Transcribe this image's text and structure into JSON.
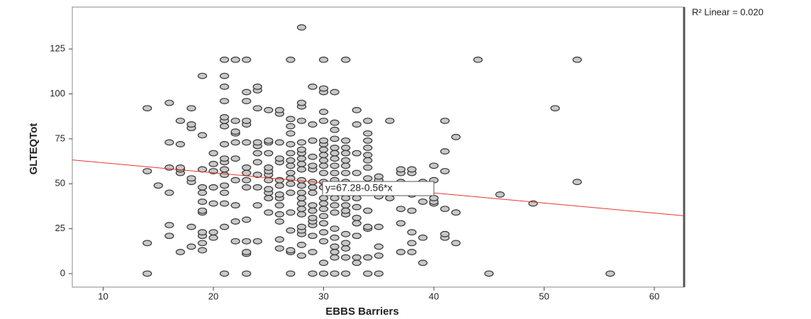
{
  "chart_data": {
    "type": "scatter",
    "x_label": "EBBS Barriers",
    "y_label": "GLTEQTot",
    "r2_label": "R² Linear = 0.020",
    "xlim": [
      7.2,
      62.7
    ],
    "ylim": [
      -7.5,
      148.3
    ],
    "xticks": [
      10,
      20,
      30,
      40,
      50,
      60
    ],
    "yticks": [
      0,
      25,
      50,
      75,
      100,
      125
    ],
    "fit": {
      "intercept": 67.28,
      "slope": -0.56,
      "label": "y=67.28-0.56*x",
      "color": "#e8352e"
    },
    "series": [
      {
        "color": "#c8c8c8",
        "x": [
          14,
          14,
          14,
          14,
          15,
          16,
          16,
          16,
          16,
          16,
          16,
          17,
          17,
          17,
          17,
          17,
          17,
          18,
          18,
          18,
          18,
          18,
          18,
          18,
          19,
          19,
          19,
          19,
          19,
          19,
          19,
          19,
          19,
          19,
          19,
          19,
          20,
          20,
          20,
          20,
          20,
          20,
          20,
          21,
          21,
          21,
          21,
          21,
          21,
          21,
          21,
          21,
          21,
          21,
          21,
          21,
          21,
          21,
          21,
          21,
          22,
          22,
          22,
          22,
          22,
          22,
          22,
          22,
          22,
          22,
          23,
          23,
          23,
          23,
          23,
          23,
          23,
          23,
          23,
          23,
          23,
          23,
          23,
          23,
          23,
          24,
          24,
          24,
          24,
          24,
          24,
          24,
          24,
          24,
          24,
          24,
          25,
          25,
          25,
          25,
          25,
          25,
          25,
          25,
          25,
          25,
          25,
          25,
          26,
          26,
          26,
          26,
          26,
          26,
          26,
          26,
          26,
          26,
          26,
          26,
          26,
          26,
          27,
          27,
          27,
          27,
          27,
          27,
          27,
          27,
          27,
          27,
          27,
          27,
          27,
          27,
          27,
          27,
          27,
          28,
          28,
          28,
          28,
          28,
          28,
          28,
          28,
          28,
          28,
          28,
          28,
          28,
          28,
          28,
          28,
          28,
          28,
          28,
          28,
          28,
          28,
          29,
          29,
          29,
          29,
          29,
          29,
          29,
          29,
          29,
          29,
          29,
          29,
          29,
          29,
          29,
          29,
          29,
          30,
          30,
          30,
          30,
          30,
          30,
          30,
          30,
          30,
          30,
          30,
          30,
          30,
          30,
          30,
          30,
          30,
          30,
          30,
          30,
          30,
          30,
          30,
          31,
          31,
          31,
          31,
          31,
          31,
          31,
          31,
          31,
          31,
          31,
          31,
          31,
          31,
          31,
          31,
          31,
          31,
          31,
          31,
          31,
          32,
          32,
          32,
          32,
          32,
          32,
          32,
          32,
          32,
          32,
          32,
          32,
          32,
          32,
          32,
          32,
          32,
          32,
          33,
          33,
          33,
          33,
          33,
          33,
          33,
          33,
          33,
          33,
          33,
          33,
          33,
          34,
          34,
          34,
          34,
          34,
          34,
          34,
          34,
          34,
          34,
          34,
          34,
          34,
          34,
          35,
          35,
          35,
          35,
          35,
          35,
          35,
          36,
          36,
          36,
          37,
          37,
          37,
          37,
          37,
          37,
          38,
          38,
          38,
          38,
          38,
          38,
          38,
          38,
          39,
          39,
          39,
          39,
          40,
          40,
          40,
          40,
          40,
          41,
          41,
          41,
          41,
          41,
          41,
          42,
          42,
          42,
          44,
          45,
          46,
          49,
          51,
          53,
          53,
          56
        ],
        "values": [
          0,
          17,
          57,
          92,
          49,
          21,
          27,
          45,
          59,
          73,
          95,
          12,
          56,
          58,
          59,
          72,
          85,
          15,
          26,
          51,
          53,
          81,
          83,
          92,
          13,
          17,
          21,
          23,
          34,
          35,
          40,
          45,
          48,
          58,
          77,
          110,
          20,
          23,
          39,
          48,
          57,
          61,
          67,
          0,
          26,
          39,
          45,
          49,
          55,
          58,
          62,
          64,
          72,
          82,
          85,
          87,
          96,
          104,
          110,
          119,
          18,
          29,
          38,
          52,
          64,
          73,
          78,
          79,
          85,
          119,
          0,
          11,
          12,
          18,
          30,
          48,
          52,
          56,
          59,
          73,
          83,
          85,
          96,
          101,
          119,
          18,
          38,
          48,
          55,
          62,
          67,
          71,
          73,
          92,
          102,
          104,
          34,
          42,
          45,
          47,
          52,
          55,
          57,
          59,
          67,
          73,
          74,
          91,
          14,
          19,
          29,
          33,
          38,
          42,
          44,
          49,
          52,
          62,
          64,
          73,
          89,
          91,
          0,
          12,
          13,
          24,
          34,
          45,
          50,
          53,
          56,
          60,
          63,
          67,
          72,
          78,
          82,
          86,
          119,
          10,
          16,
          22,
          24,
          26,
          33,
          36,
          39,
          42,
          45,
          49,
          52,
          58,
          61,
          64,
          67,
          69,
          73,
          85,
          93,
          95,
          137,
          0,
          12,
          21,
          27,
          29,
          31,
          35,
          38,
          45,
          48,
          51,
          58,
          60,
          65,
          74,
          83,
          104,
          0,
          6,
          18,
          23,
          28,
          32,
          36,
          39,
          42,
          48,
          51,
          56,
          60,
          63,
          66,
          69,
          72,
          74,
          85,
          90,
          101,
          103,
          119,
          0,
          9,
          12,
          15,
          20,
          25,
          34,
          38,
          42,
          45,
          48,
          52,
          56,
          60,
          64,
          67,
          70,
          75,
          80,
          84,
          101,
          0,
          9,
          14,
          17,
          22,
          33,
          35,
          38,
          42,
          45,
          51,
          56,
          60,
          63,
          67,
          70,
          74,
          119,
          6,
          9,
          21,
          28,
          31,
          37,
          42,
          45,
          49,
          56,
          67,
          83,
          91,
          0,
          9,
          25,
          26,
          35,
          49,
          53,
          59,
          63,
          66,
          70,
          74,
          78,
          85,
          0,
          10,
          15,
          26,
          43,
          52,
          54,
          42,
          49,
          85,
          12,
          28,
          36,
          51,
          56,
          58,
          12,
          17,
          23,
          35,
          44,
          49,
          56,
          58,
          6,
          20,
          40,
          51,
          39,
          40,
          42,
          52,
          60,
          20,
          22,
          36,
          57,
          68,
          85,
          17,
          34,
          76,
          119,
          0,
          44,
          39,
          92,
          51,
          119,
          0
        ]
      }
    ]
  }
}
